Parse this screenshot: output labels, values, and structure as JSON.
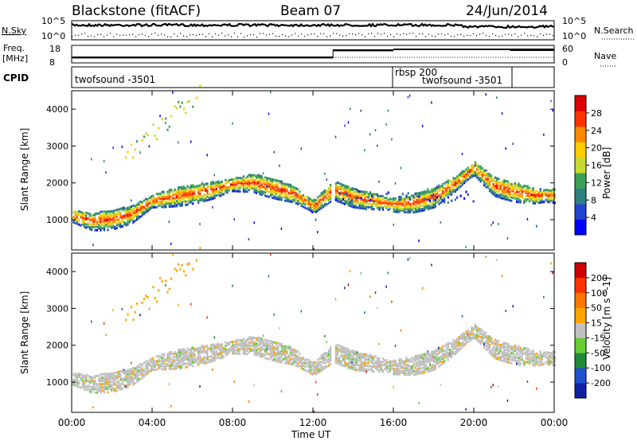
{
  "header": {
    "station": "Blackstone (fitACF)",
    "beam": "Beam 07",
    "date": "24/Jun/2014"
  },
  "top_panel": {
    "nsky_label": "N.Sky",
    "nsearch_label": "N.Search",
    "tick_hi": "10^5",
    "tick_lo": "10^0",
    "freq_label": "Freq.",
    "freq_unit": "[MHz]",
    "freq_ticks": [
      "18",
      "8"
    ],
    "nave_label": "Nave",
    "nave_ticks": [
      "60",
      "0"
    ],
    "cpid_label": "CPID",
    "cpid_entries": [
      {
        "text": "twofsound -3501",
        "t": 0.0
      },
      {
        "text": "rbsp 200",
        "t": 16.0
      },
      {
        "text": "twofsound -3501",
        "t": 17.5
      }
    ]
  },
  "chart_data": [
    {
      "type": "heatmap",
      "name": "power",
      "ylabel": "Slant Range [km]",
      "colorbar_label": "Power [dB]",
      "colorbar_ticks": [
        "28",
        "24",
        "20",
        "16",
        "12",
        "8",
        "4"
      ],
      "colors": [
        "#0000ff",
        "#2244cc",
        "#2e7f7f",
        "#3aa055",
        "#c8d832",
        "#ffcc00",
        "#ff8800",
        "#ff3300",
        "#dd0000"
      ],
      "x": [
        "00:00",
        "04:00",
        "08:00",
        "12:00",
        "16:00",
        "20:00",
        "00:00"
      ],
      "xlim": [
        0,
        24
      ],
      "ylim": [
        180,
        4500
      ],
      "yticks": [
        "1000",
        "2000",
        "3000",
        "4000"
      ],
      "echo_band_range_km": [
        [
          0,
          1150
        ],
        [
          1,
          1000
        ],
        [
          2,
          1050
        ],
        [
          3,
          1200
        ],
        [
          4,
          1550
        ],
        [
          5,
          1650
        ],
        [
          6,
          1750
        ],
        [
          7,
          1850
        ],
        [
          8,
          2000
        ],
        [
          9,
          2050
        ],
        [
          10,
          1900
        ],
        [
          11,
          1750
        ],
        [
          12,
          1400
        ],
        [
          13,
          1850
        ],
        [
          14,
          1650
        ],
        [
          15,
          1550
        ],
        [
          16,
          1450
        ],
        [
          17,
          1500
        ],
        [
          18,
          1650
        ],
        [
          19,
          2000
        ],
        [
          20,
          2450
        ],
        [
          21,
          1950
        ],
        [
          22,
          1800
        ],
        [
          23,
          1700
        ],
        [
          24,
          1700
        ]
      ],
      "peak_power_db": 30
    },
    {
      "type": "heatmap",
      "name": "velocity",
      "ylabel": "Slant Range [km]",
      "colorbar_label": "Velocity [m s^-1]",
      "colorbar_ticks": [
        "200",
        "100",
        "50",
        "15",
        "-15",
        "-50",
        "-100",
        "-200"
      ],
      "colors": [
        "#1020a0",
        "#2050d0",
        "#1e8a3a",
        "#66cc33",
        "#c0c0c0",
        "#ffa500",
        "#ff7700",
        "#ff3300",
        "#cc0000"
      ],
      "x": [
        "00:00",
        "04:00",
        "08:00",
        "12:00",
        "16:00",
        "20:00",
        "00:00"
      ],
      "xlim": [
        0,
        24
      ],
      "ylim": [
        180,
        4500
      ],
      "yticks": [
        "1000",
        "2000",
        "3000",
        "4000"
      ],
      "dominant_velocity_ms": [
        -15,
        15
      ]
    }
  ],
  "x_axis": {
    "label": "Time UT",
    "ticks": [
      "00:00",
      "04:00",
      "08:00",
      "12:00",
      "16:00",
      "20:00",
      "00:00"
    ]
  }
}
